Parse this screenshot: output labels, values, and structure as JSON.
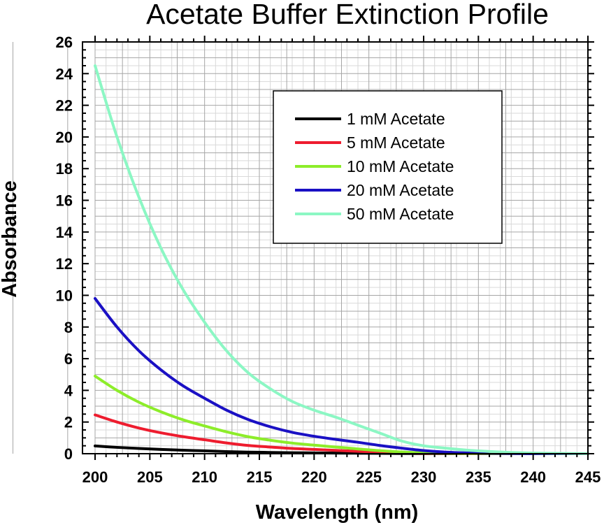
{
  "chart_data": {
    "type": "line",
    "title": "Acetate Buffer Extinction Profile",
    "xlabel": "Wavelength (nm)",
    "ylabel": "Absorbance",
    "xlim": [
      200,
      245
    ],
    "ylim": [
      0,
      26
    ],
    "xticks": [
      "200",
      "205",
      "210",
      "215",
      "220",
      "225",
      "230",
      "235",
      "240",
      "245"
    ],
    "yticks": [
      "0",
      "2",
      "4",
      "6",
      "8",
      "10",
      "12",
      "14",
      "16",
      "18",
      "20",
      "22",
      "24",
      "26"
    ],
    "grid": true,
    "legend_position": "top-right",
    "x": [
      200,
      202,
      204,
      206,
      208,
      210,
      212,
      214,
      216,
      218,
      220,
      222,
      224,
      226,
      228,
      230,
      232,
      234,
      236,
      238,
      240,
      242,
      245
    ],
    "series": [
      {
        "name": "1 mM Acetate",
        "color": "#000000",
        "values": [
          0.49,
          0.4,
          0.33,
          0.27,
          0.22,
          0.18,
          0.13,
          0.1,
          0.08,
          0.06,
          0.05,
          0.04,
          0.03,
          0.02,
          0.012,
          0.008,
          0.005,
          0.003,
          0.002,
          0.001,
          0.0,
          0.0,
          0.0
        ]
      },
      {
        "name": "5 mM Acetate",
        "color": "#ee1c2e",
        "values": [
          2.45,
          2.0,
          1.62,
          1.32,
          1.08,
          0.88,
          0.68,
          0.52,
          0.42,
          0.33,
          0.27,
          0.21,
          0.15,
          0.1,
          0.06,
          0.03,
          0.02,
          0.01,
          0.005,
          0.002,
          0.0,
          0.0,
          0.0
        ]
      },
      {
        "name": "10 mM Acetate",
        "color": "#8ded2a",
        "values": [
          4.9,
          4.0,
          3.25,
          2.65,
          2.15,
          1.75,
          1.38,
          1.07,
          0.85,
          0.67,
          0.54,
          0.42,
          0.3,
          0.19,
          0.11,
          0.05,
          0.03,
          0.015,
          0.008,
          0.003,
          0.0,
          0.0,
          0.0
        ]
      },
      {
        "name": "20 mM Acetate",
        "color": "#1a10c4",
        "values": [
          9.8,
          8.0,
          6.5,
          5.3,
          4.3,
          3.5,
          2.75,
          2.15,
          1.7,
          1.35,
          1.1,
          0.9,
          0.72,
          0.52,
          0.35,
          0.2,
          0.1,
          0.05,
          0.025,
          0.01,
          0.0,
          0.0,
          0.0
        ]
      },
      {
        "name": "50 mM Acetate",
        "color": "#8cf7c4",
        "values": [
          24.5,
          20.0,
          16.2,
          13.0,
          10.4,
          8.3,
          6.5,
          5.1,
          4.1,
          3.3,
          2.75,
          2.3,
          1.8,
          1.3,
          0.8,
          0.5,
          0.35,
          0.22,
          0.14,
          0.08,
          0.04,
          0.02,
          0.0
        ]
      }
    ]
  }
}
